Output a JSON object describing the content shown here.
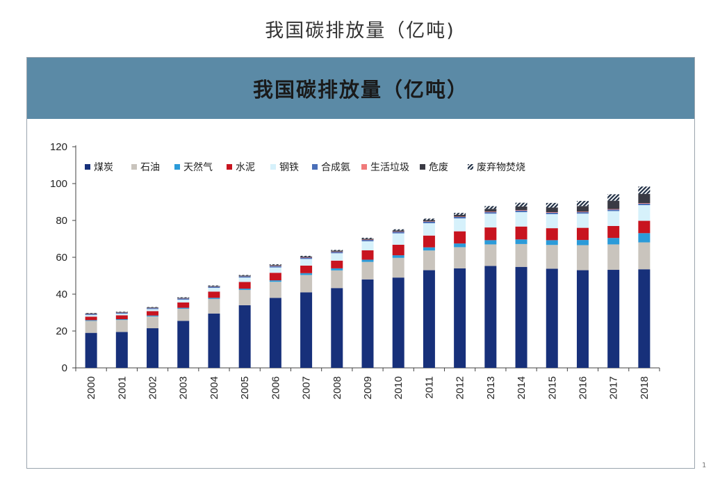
{
  "page": {
    "title": "我国碳排放量（亿吨)",
    "corner_mark": "1"
  },
  "banner": {
    "title": "我国碳排放量（亿吨）",
    "color": "#5b8aa6"
  },
  "chart_data": {
    "type": "bar",
    "stacked": true,
    "title": "我国碳排放量（亿吨）",
    "xlabel": "",
    "ylabel": "",
    "ylim": [
      0,
      120
    ],
    "yticks": [
      0,
      20,
      40,
      60,
      80,
      100,
      120
    ],
    "grid": false,
    "legend_position": "top",
    "categories": [
      "2000",
      "2001",
      "2002",
      "2003",
      "2004",
      "2005",
      "2006",
      "2007",
      "2008",
      "2009",
      "2010",
      "2011",
      "2012",
      "2013",
      "2014",
      "2015",
      "2016",
      "2017",
      "2018"
    ],
    "series": [
      {
        "name": "煤炭",
        "color": "#17307a",
        "pattern": "solid",
        "values": [
          19,
          19.5,
          21.5,
          25.5,
          29.5,
          34,
          38,
          41,
          43.3,
          48,
          49,
          53,
          54,
          55.3,
          54.8,
          53.8,
          53,
          53.2,
          53.5
        ]
      },
      {
        "name": "石油",
        "color": "#c9c4bd",
        "pattern": "solid",
        "values": [
          6.5,
          6.5,
          6.4,
          6.6,
          7.9,
          8.3,
          8.7,
          9.4,
          9.6,
          9.5,
          10.7,
          10.7,
          11.5,
          11.7,
          12.4,
          12.9,
          13.6,
          13.8,
          14.6
        ]
      },
      {
        "name": "天然气",
        "color": "#2b9bd9",
        "pattern": "solid",
        "values": [
          0.4,
          0.4,
          0.5,
          0.5,
          0.6,
          0.7,
          0.8,
          1,
          1.1,
          1.2,
          1.4,
          1.7,
          2,
          2.3,
          2.5,
          2.6,
          2.8,
          3.5,
          5
        ]
      },
      {
        "name": "水泥",
        "color": "#c8141f",
        "pattern": "solid",
        "values": [
          1.9,
          2.1,
          2.4,
          2.9,
          3.4,
          3.6,
          4.1,
          4.1,
          4.2,
          5.1,
          5.7,
          6.4,
          6.6,
          6.9,
          7,
          6.5,
          6.6,
          6.5,
          6.7
        ]
      },
      {
        "name": "钢铁",
        "color": "#d6f1fb",
        "pattern": "solid",
        "values": [
          0.9,
          0.9,
          1.1,
          1.5,
          2,
          2.4,
          2.9,
          3.6,
          4,
          4.9,
          6.2,
          6.7,
          7,
          7.5,
          7.8,
          7.6,
          7.7,
          8.1,
          8.5
        ]
      },
      {
        "name": "合成氨",
        "color": "#4a6fb8",
        "pattern": "solid",
        "values": [
          0.5,
          0.5,
          0.5,
          0.6,
          0.6,
          0.6,
          0.7,
          0.7,
          0.7,
          0.7,
          0.8,
          0.8,
          0.8,
          0.8,
          0.8,
          0.8,
          0.8,
          0.8,
          0.8
        ]
      },
      {
        "name": "生活垃圾",
        "color": "#f07a7a",
        "pattern": "solid",
        "values": [
          0.1,
          0.1,
          0.1,
          0.1,
          0.1,
          0.1,
          0.2,
          0.2,
          0.2,
          0.2,
          0.2,
          0.2,
          0.2,
          0.3,
          0.3,
          0.3,
          0.3,
          0.3,
          0.3
        ]
      },
      {
        "name": "危废",
        "color": "#3a3a44",
        "pattern": "solid",
        "values": [
          0.3,
          0.3,
          0.3,
          0.3,
          0.3,
          0.4,
          0.4,
          0.4,
          0.5,
          0.5,
          0.6,
          0.7,
          1,
          1.5,
          2,
          2.5,
          3,
          4.5,
          5
        ]
      },
      {
        "name": "废弃物焚烧",
        "color": "#1f2e44",
        "pattern": "hatch",
        "values": [
          0.2,
          0.2,
          0.2,
          0.3,
          0.3,
          0.3,
          0.4,
          0.4,
          0.4,
          0.5,
          0.6,
          0.8,
          1,
          1.5,
          2,
          2.5,
          2.8,
          3.5,
          4
        ]
      }
    ]
  }
}
